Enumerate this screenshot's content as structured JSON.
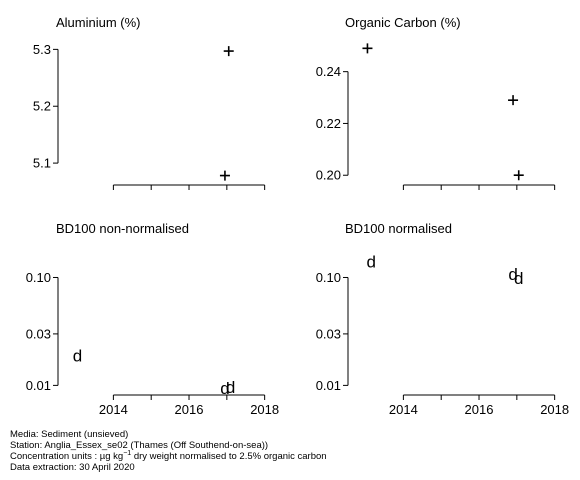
{
  "chart_data": [
    {
      "type": "scatter",
      "title": "Aluminium (%)",
      "marker": "+",
      "ylim": [
        5.065,
        5.32
      ],
      "yticks": [
        5.1,
        5.2,
        5.3
      ],
      "ytick_labels": [
        "5.1",
        "5.2",
        "5.3"
      ],
      "xlim": [
        2012.8,
        2018.3
      ],
      "xticks": [
        2014,
        2015,
        2016,
        2017,
        2018
      ],
      "xtick_labels": [],
      "points": [
        {
          "x": 2017.05,
          "y": 5.297
        },
        {
          "x": 2016.95,
          "y": 5.078
        }
      ]
    },
    {
      "type": "scatter",
      "title": "Organic Carbon (%)",
      "marker": "+",
      "ylim": [
        0.197,
        0.253
      ],
      "yticks": [
        0.2,
        0.22,
        0.24
      ],
      "ytick_labels": [
        "0.20",
        "0.22",
        "0.24"
      ],
      "xlim": [
        2012.8,
        2018.3
      ],
      "xticks": [
        2014,
        2015,
        2016,
        2017,
        2018
      ],
      "xtick_labels": [],
      "points": [
        {
          "x": 2013.05,
          "y": 0.249
        },
        {
          "x": 2016.9,
          "y": 0.229
        },
        {
          "x": 2017.05,
          "y": 0.2
        }
      ]
    },
    {
      "type": "scatter",
      "title": "BD100 non-normalised",
      "marker": "d",
      "yscale": "log",
      "ylim": [
        0.0085,
        0.2
      ],
      "yticks": [
        0.01,
        0.03,
        0.1
      ],
      "ytick_labels": [
        "0.01",
        "0.03",
        "0.10"
      ],
      "xlim": [
        2012.8,
        2018.3
      ],
      "xticks": [
        2014,
        2015,
        2016,
        2017,
        2018
      ],
      "xtick_labels": [
        "2014",
        "",
        "2016",
        "",
        "2018"
      ],
      "points": [
        {
          "x": 2013.05,
          "y": 0.019
        },
        {
          "x": 2016.95,
          "y": 0.0095
        },
        {
          "x": 2017.1,
          "y": 0.0097
        }
      ]
    },
    {
      "type": "scatter",
      "title": "BD100 normalised",
      "marker": "d",
      "yscale": "log",
      "ylim": [
        0.0085,
        0.2
      ],
      "yticks": [
        0.01,
        0.03,
        0.1
      ],
      "ytick_labels": [
        "0.01",
        "0.03",
        "0.10"
      ],
      "xlim": [
        2012.8,
        2018.3
      ],
      "xticks": [
        2014,
        2015,
        2016,
        2017,
        2018
      ],
      "xtick_labels": [
        "2014",
        "",
        "2016",
        "",
        "2018"
      ],
      "points": [
        {
          "x": 2013.15,
          "y": 0.14
        },
        {
          "x": 2016.9,
          "y": 0.108
        },
        {
          "x": 2017.05,
          "y": 0.099
        }
      ]
    }
  ],
  "footer": {
    "media": "Media: Sediment (unsieved)",
    "station": "Station: Anglia_Essex_se02 (Thames (Off Southend-on-sea))",
    "units_prefix": "Concentration units : µg kg",
    "units_exponent": "−1",
    "units_suffix": " dry weight normalised to 2.5% organic carbon",
    "extraction": "Data extraction: 30 April 2020"
  }
}
